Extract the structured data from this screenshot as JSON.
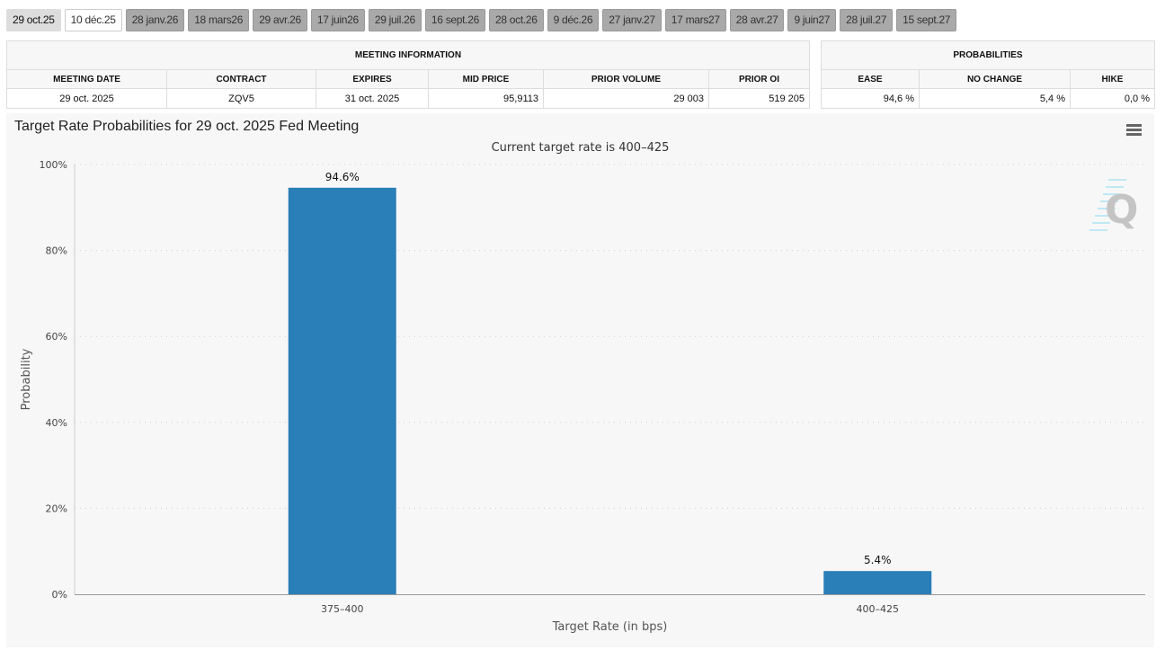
{
  "tabs": [
    "29 oct.25",
    "10 déc.25",
    "28 janv.26",
    "18 mars26",
    "29 avr.26",
    "17 juin26",
    "29 juil.26",
    "16 sept.26",
    "28 oct.26",
    "9 déc.26",
    "27 janv.27",
    "17 mars27",
    "28 avr.27",
    "9 juin27",
    "28 juil.27",
    "15 sept.27"
  ],
  "meeting_info": {
    "title": "MEETING INFORMATION",
    "headers": [
      "MEETING DATE",
      "CONTRACT",
      "EXPIRES",
      "MID PRICE",
      "PRIOR VOLUME",
      "PRIOR OI"
    ],
    "row": [
      "29 oct. 2025",
      "ZQV5",
      "31 oct. 2025",
      "95,9113",
      "29 003",
      "519 205"
    ]
  },
  "probabilities": {
    "title": "PROBABILITIES",
    "headers": [
      "EASE",
      "NO CHANGE",
      "HIKE"
    ],
    "row": [
      "94,6 %",
      "5,4 %",
      "0,0 %"
    ]
  },
  "chart_data": {
    "type": "bar",
    "title": "Target Rate Probabilities for 29 oct. 2025 Fed Meeting",
    "subtitle": "Current target rate is 400–425",
    "xlabel": "Target Rate (in bps)",
    "ylabel": "Probability",
    "categories": [
      "375–400",
      "400–425"
    ],
    "values": [
      94.6,
      5.4
    ],
    "data_labels": [
      "94.6%",
      "5.4%"
    ],
    "ylim": [
      0,
      100
    ],
    "yticks": [
      "0%",
      "20%",
      "40%",
      "60%",
      "80%",
      "100%"
    ],
    "grid": true,
    "bar_color": "#2a7fb8"
  }
}
